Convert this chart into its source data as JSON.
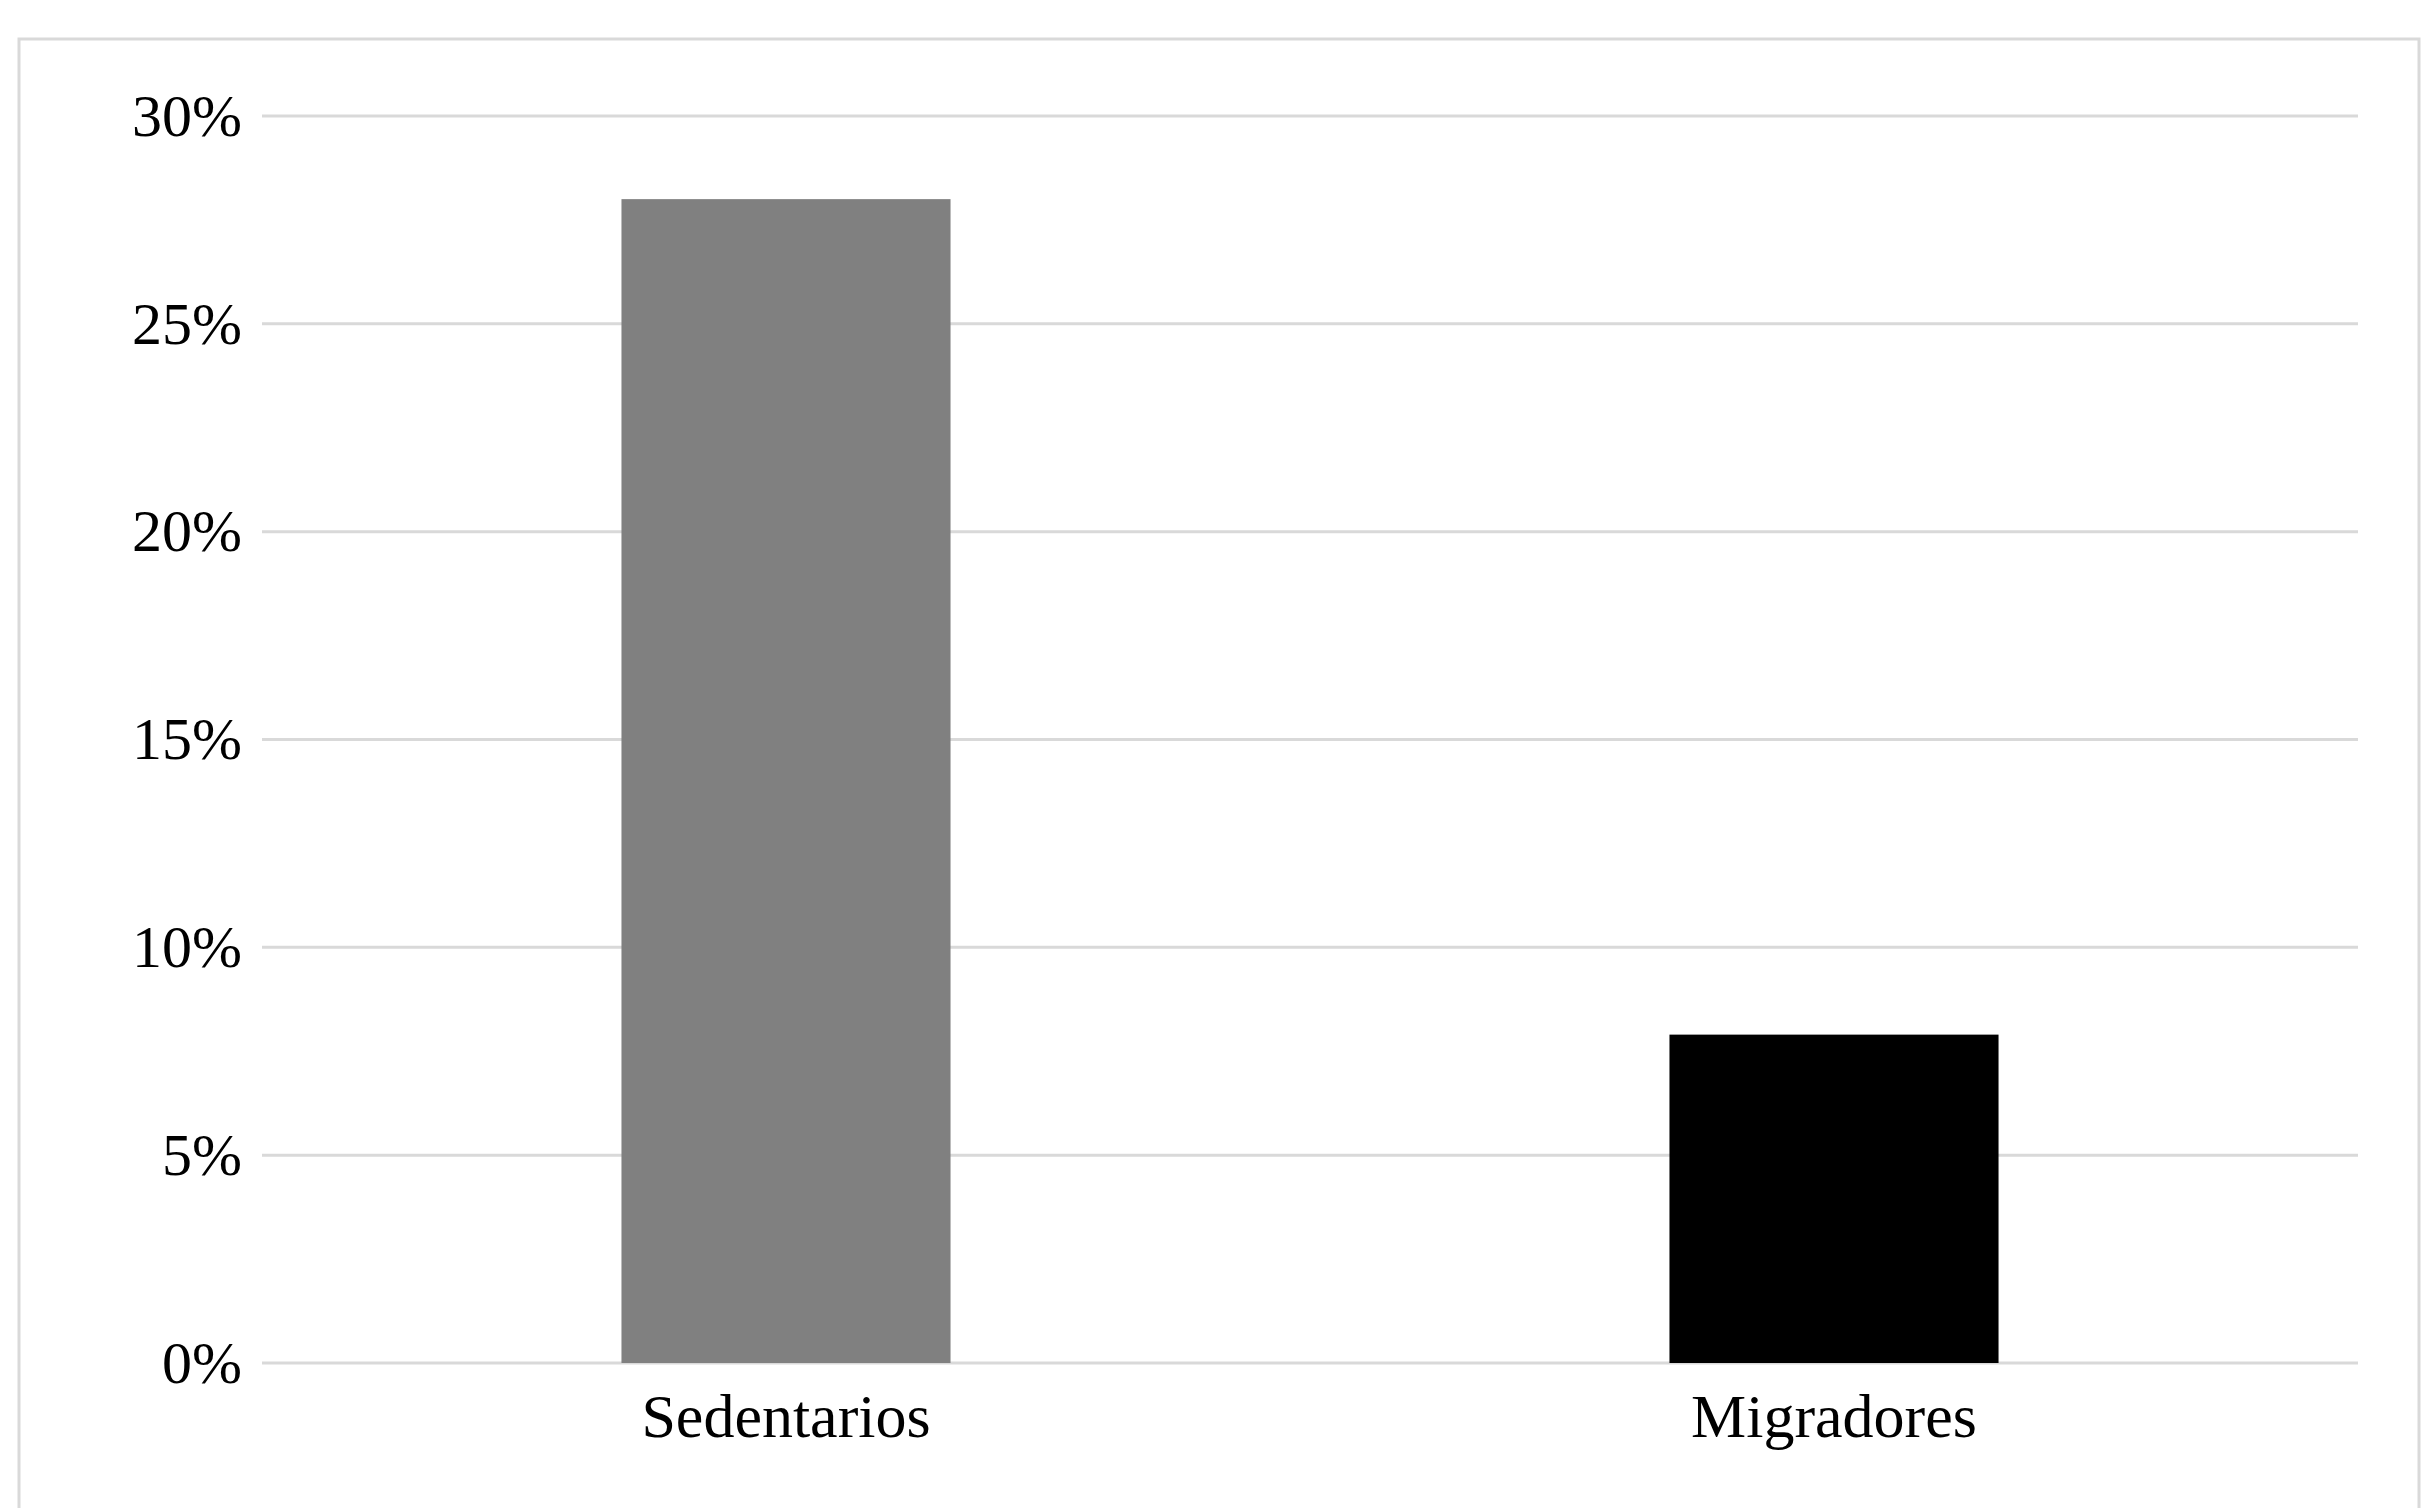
{
  "chart_data": {
    "type": "bar",
    "categories": [
      "Sedentarios",
      "Migradores"
    ],
    "values": [
      28,
      7.9
    ],
    "colors": [
      "#808080",
      "#000000"
    ],
    "ylim": [
      0,
      30
    ],
    "yticks": [
      {
        "value": 0,
        "label": "0%"
      },
      {
        "value": 5,
        "label": "5%"
      },
      {
        "value": 10,
        "label": "10%"
      },
      {
        "value": 15,
        "label": "15%"
      },
      {
        "value": 20,
        "label": "20%"
      },
      {
        "value": 25,
        "label": "25%"
      },
      {
        "value": 30,
        "label": "30%"
      }
    ],
    "grid": "y"
  }
}
